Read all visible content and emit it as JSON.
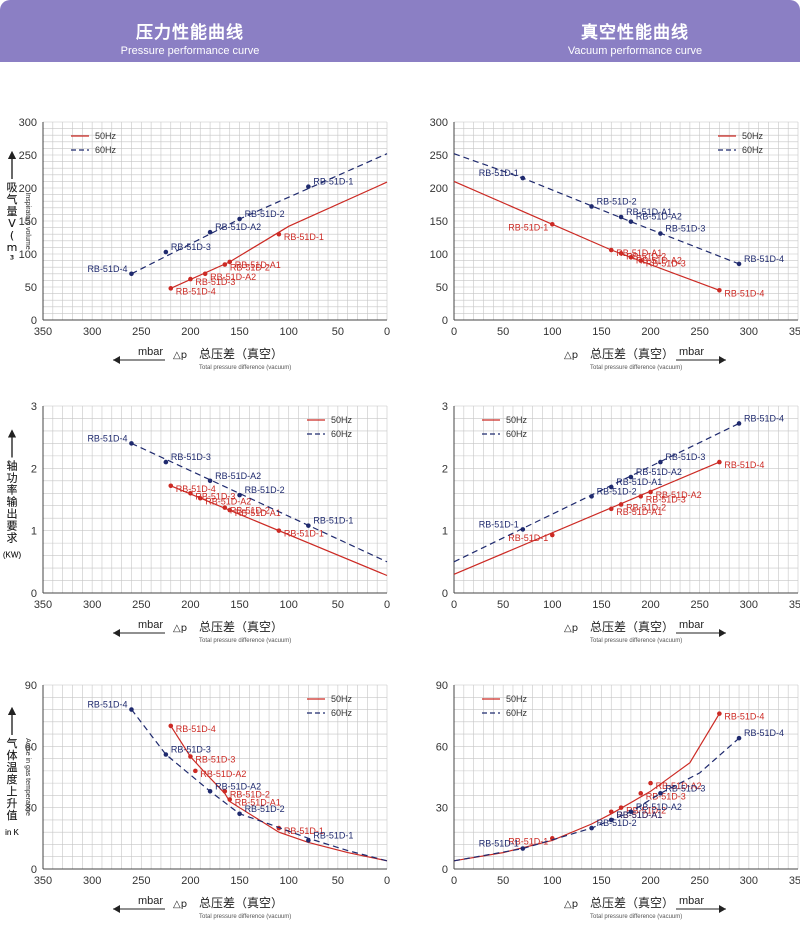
{
  "header": {
    "left_title_zh": "压力性能曲线",
    "left_title_en": "Pressure performance curve",
    "right_title_zh": "真空性能曲线",
    "right_title_en": "Vacuum performance curve"
  },
  "labels": {
    "mbar": "mbar",
    "delta_p": "△p",
    "dp_zh": "总压差（真空）",
    "dp_en": "Total pressure difference (vacuum)",
    "legend_50": "50Hz",
    "legend_60": "60Hz",
    "inlet_zh": "吸气量 V (m³/h)",
    "inlet_en": "Inspiratory volume",
    "power_zh": "轴功率输出要求",
    "power_unit": "(KW)",
    "temp_zh": "气体温度上升值",
    "temp_en": "A rise in gas temperature",
    "temp_unit": "in K"
  },
  "colors": {
    "c50": "#cc2a24",
    "c60": "#1f2a6e",
    "grid": "#c6c6c6",
    "banner": "#8b7fc4"
  },
  "chart_data": [
    {
      "type": "line",
      "id": "pressure-flow",
      "x_reversed": true,
      "xlim": [
        0,
        350
      ],
      "ylim": [
        0,
        300
      ],
      "xticks": [
        350,
        300,
        250,
        200,
        150,
        100,
        50,
        0
      ],
      "yticks": [
        0,
        50,
        100,
        150,
        200,
        250,
        300
      ],
      "grid": true,
      "legend": "top-left",
      "series": [
        {
          "name": "50Hz",
          "line": [
            [
              220,
              48
            ],
            [
              160,
              88
            ],
            [
              100,
              142
            ],
            [
              0,
              209
            ]
          ],
          "points": [
            {
              "x": 220,
              "y": 48,
              "label": "RB-51D-4"
            },
            {
              "x": 200,
              "y": 62,
              "label": "RB-51D-3"
            },
            {
              "x": 185,
              "y": 70,
              "label": "RB-51D-A2"
            },
            {
              "x": 165,
              "y": 84,
              "label": "RB-51D-2"
            },
            {
              "x": 160,
              "y": 88,
              "label": "RB-51D-A1"
            },
            {
              "x": 110,
              "y": 130,
              "label": "RB-51D-1"
            }
          ]
        },
        {
          "name": "60Hz",
          "line": [
            [
              260,
              70
            ],
            [
              150,
              153
            ],
            [
              0,
              252
            ]
          ],
          "points": [
            {
              "x": 260,
              "y": 70,
              "label": "RB-51D-4"
            },
            {
              "x": 225,
              "y": 103,
              "label": "RB-51D-3"
            },
            {
              "x": 180,
              "y": 133,
              "label": "RB-51D-A2"
            },
            {
              "x": 150,
              "y": 153,
              "label": "RB-51D-2"
            },
            {
              "x": 80,
              "y": 202,
              "label": "RB-51D-1"
            }
          ]
        }
      ]
    },
    {
      "type": "line",
      "id": "vacuum-flow",
      "x_reversed": false,
      "xlim": [
        0,
        350
      ],
      "ylim": [
        0,
        300
      ],
      "xticks": [
        0,
        50,
        100,
        150,
        200,
        250,
        300,
        350
      ],
      "yticks": [
        0,
        50,
        100,
        150,
        200,
        250,
        300
      ],
      "grid": true,
      "legend": "top-right",
      "series": [
        {
          "name": "50Hz",
          "line": [
            [
              0,
              210
            ],
            [
              100,
              145
            ],
            [
              160,
              106
            ],
            [
              270,
              45
            ]
          ],
          "points": [
            {
              "x": 100,
              "y": 145,
              "label": "RB-51D-1"
            },
            {
              "x": 160,
              "y": 106,
              "label": "RB-51D-A1"
            },
            {
              "x": 170,
              "y": 101,
              "label": "RB-51D-2"
            },
            {
              "x": 190,
              "y": 90,
              "label": "RB-51D-3"
            },
            {
              "x": 180,
              "y": 95,
              "label": "RB-51D-A2"
            },
            {
              "x": 270,
              "y": 45,
              "label": "RB-51D-4"
            }
          ]
        },
        {
          "name": "60Hz",
          "line": [
            [
              0,
              252
            ],
            [
              70,
              215
            ],
            [
              180,
              149
            ],
            [
              290,
              85
            ]
          ],
          "points": [
            {
              "x": 70,
              "y": 215,
              "label": "RB-51D-1"
            },
            {
              "x": 140,
              "y": 172,
              "label": "RB-51D-2"
            },
            {
              "x": 170,
              "y": 156,
              "label": "RB-51D-A1"
            },
            {
              "x": 180,
              "y": 149,
              "label": "RB-51D-A2"
            },
            {
              "x": 210,
              "y": 131,
              "label": "RB-51D-3"
            },
            {
              "x": 290,
              "y": 85,
              "label": "RB-51D-4"
            }
          ]
        }
      ]
    },
    {
      "type": "line",
      "id": "pressure-power",
      "x_reversed": true,
      "xlim": [
        0,
        350
      ],
      "ylim": [
        0,
        3
      ],
      "xticks": [
        350,
        300,
        250,
        200,
        150,
        100,
        50,
        0
      ],
      "yticks": [
        0,
        1,
        2,
        3
      ],
      "grid": true,
      "legend": "top-right",
      "series": [
        {
          "name": "50Hz",
          "line": [
            [
              220,
              1.72
            ],
            [
              0,
              0.28
            ]
          ],
          "points": [
            {
              "x": 220,
              "y": 1.72,
              "label": "RB-51D-4"
            },
            {
              "x": 200,
              "y": 1.6,
              "label": "RB-51D-3"
            },
            {
              "x": 190,
              "y": 1.52,
              "label": "RB-51D-A2"
            },
            {
              "x": 165,
              "y": 1.37,
              "label": "RB-51D-2"
            },
            {
              "x": 160,
              "y": 1.33,
              "label": "RB-51D-A1"
            },
            {
              "x": 110,
              "y": 1.0,
              "label": "RB-51D-1"
            }
          ]
        },
        {
          "name": "60Hz",
          "line": [
            [
              260,
              2.4
            ],
            [
              0,
              0.5
            ]
          ],
          "points": [
            {
              "x": 260,
              "y": 2.4,
              "label": "RB-51D-4"
            },
            {
              "x": 225,
              "y": 2.1,
              "label": "RB-51D-3"
            },
            {
              "x": 180,
              "y": 1.8,
              "label": "RB-51D-A2"
            },
            {
              "x": 150,
              "y": 1.57,
              "label": "RB-51D-2"
            },
            {
              "x": 80,
              "y": 1.08,
              "label": "RB-51D-1"
            }
          ]
        }
      ]
    },
    {
      "type": "line",
      "id": "vacuum-power",
      "x_reversed": false,
      "xlim": [
        0,
        350
      ],
      "ylim": [
        0,
        3
      ],
      "xticks": [
        0,
        50,
        100,
        150,
        200,
        250,
        300,
        350
      ],
      "yticks": [
        0,
        1,
        2,
        3
      ],
      "grid": true,
      "legend": "top-left",
      "series": [
        {
          "name": "50Hz",
          "line": [
            [
              0,
              0.3
            ],
            [
              270,
              2.1
            ]
          ],
          "points": [
            {
              "x": 100,
              "y": 0.93,
              "label": "RB-51D-1"
            },
            {
              "x": 160,
              "y": 1.35,
              "label": "RB-51D-A1"
            },
            {
              "x": 170,
              "y": 1.42,
              "label": "RB-51D-2"
            },
            {
              "x": 190,
              "y": 1.55,
              "label": "RB-51D-3"
            },
            {
              "x": 200,
              "y": 1.62,
              "label": "RB-51D-A2"
            },
            {
              "x": 270,
              "y": 2.1,
              "label": "RB-51D-4"
            }
          ]
        },
        {
          "name": "60Hz",
          "line": [
            [
              0,
              0.5
            ],
            [
              290,
              2.72
            ]
          ],
          "points": [
            {
              "x": 70,
              "y": 1.02,
              "label": "RB-51D-1"
            },
            {
              "x": 140,
              "y": 1.55,
              "label": "RB-51D-2"
            },
            {
              "x": 160,
              "y": 1.7,
              "label": "RB-51D-A1"
            },
            {
              "x": 180,
              "y": 1.86,
              "label": "RB-51D-A2"
            },
            {
              "x": 210,
              "y": 2.1,
              "label": "RB-51D-3"
            },
            {
              "x": 290,
              "y": 2.72,
              "label": "RB-51D-4"
            }
          ]
        }
      ]
    },
    {
      "type": "line",
      "id": "pressure-temp",
      "x_reversed": true,
      "xlim": [
        0,
        350
      ],
      "ylim": [
        0,
        90
      ],
      "xticks": [
        350,
        300,
        250,
        200,
        150,
        100,
        50,
        0
      ],
      "yticks": [
        0,
        30,
        60,
        90
      ],
      "grid": true,
      "legend": "top-right",
      "series": [
        {
          "name": "50Hz",
          "line": [
            [
              220,
              70
            ],
            [
              200,
              55
            ],
            [
              185,
              47
            ],
            [
              165,
              37
            ],
            [
              160,
              33
            ],
            [
              130,
              24
            ],
            [
              110,
              18
            ],
            [
              80,
              13
            ],
            [
              40,
              8
            ],
            [
              0,
              4
            ]
          ],
          "points": [
            {
              "x": 220,
              "y": 70,
              "label": "RB-51D-4"
            },
            {
              "x": 200,
              "y": 55,
              "label": "RB-51D-3"
            },
            {
              "x": 195,
              "y": 48,
              "label": "RB-51D-A2"
            },
            {
              "x": 165,
              "y": 38,
              "label": "RB-51D-2"
            },
            {
              "x": 160,
              "y": 34,
              "label": "RB-51D-A1"
            },
            {
              "x": 110,
              "y": 20,
              "label": "RB-51D-1"
            }
          ]
        },
        {
          "name": "60Hz",
          "line": [
            [
              260,
              78
            ],
            [
              225,
              56
            ],
            [
              180,
              38
            ],
            [
              150,
              27
            ],
            [
              120,
              22
            ],
            [
              80,
              15
            ],
            [
              40,
              9
            ],
            [
              0,
              4
            ]
          ],
          "points": [
            {
              "x": 260,
              "y": 78,
              "label": "RB-51D-4"
            },
            {
              "x": 225,
              "y": 56,
              "label": "RB-51D-3"
            },
            {
              "x": 180,
              "y": 38,
              "label": "RB-51D-A2"
            },
            {
              "x": 150,
              "y": 27,
              "label": "RB-51D-2"
            },
            {
              "x": 80,
              "y": 14,
              "label": "RB-51D-1"
            }
          ]
        }
      ]
    },
    {
      "type": "line",
      "id": "vacuum-temp",
      "x_reversed": false,
      "xlim": [
        0,
        350
      ],
      "ylim": [
        0,
        90
      ],
      "xticks": [
        0,
        50,
        100,
        150,
        200,
        250,
        300,
        350
      ],
      "yticks": [
        0,
        30,
        60,
        90
      ],
      "grid": true,
      "legend": "top-left",
      "series": [
        {
          "name": "50Hz",
          "line": [
            [
              0,
              4
            ],
            [
              50,
              8
            ],
            [
              100,
              14
            ],
            [
              140,
              22
            ],
            [
              160,
              27
            ],
            [
              200,
              38
            ],
            [
              240,
              52
            ],
            [
              270,
              76
            ]
          ],
          "points": [
            {
              "x": 100,
              "y": 15,
              "label": "RB-51D-1"
            },
            {
              "x": 160,
              "y": 28,
              "label": "RB-51D-A1"
            },
            {
              "x": 170,
              "y": 30,
              "label": "RB-51D-2"
            },
            {
              "x": 190,
              "y": 37,
              "label": "RB-51D-3"
            },
            {
              "x": 200,
              "y": 42,
              "label": "RB-51D-A2"
            },
            {
              "x": 270,
              "y": 76,
              "label": "RB-51D-4"
            }
          ]
        },
        {
          "name": "60Hz",
          "line": [
            [
              0,
              4
            ],
            [
              70,
              10
            ],
            [
              140,
              20
            ],
            [
              180,
              28
            ],
            [
              210,
              37
            ],
            [
              250,
              47
            ],
            [
              290,
              64
            ]
          ],
          "points": [
            {
              "x": 70,
              "y": 10,
              "label": "RB-51D-1"
            },
            {
              "x": 140,
              "y": 20,
              "label": "RB-51D-2"
            },
            {
              "x": 160,
              "y": 24,
              "label": "RB-51D-A1"
            },
            {
              "x": 180,
              "y": 28,
              "label": "RB-51D-A2"
            },
            {
              "x": 210,
              "y": 37,
              "label": "RB-51D-3"
            },
            {
              "x": 290,
              "y": 64,
              "label": "RB-51D-4"
            }
          ]
        }
      ]
    }
  ]
}
